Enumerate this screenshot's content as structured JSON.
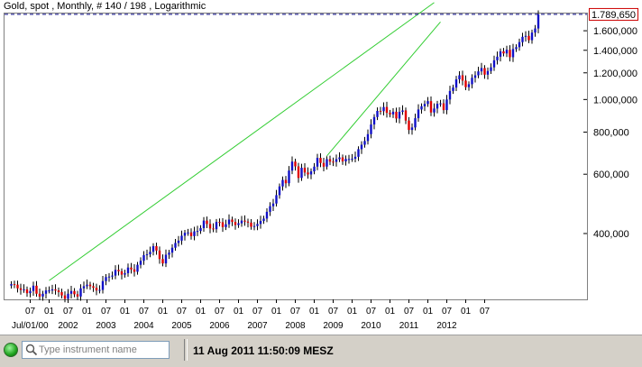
{
  "window": {
    "title": "Gold, spot , Monthly, # 140 / 198 , Logarithmic"
  },
  "price_label": "1.789,650",
  "statusbar": {
    "instrument_placeholder": "Type instrument name",
    "timestamp": "11 Aug 2011 11:50:09 MESZ"
  },
  "colors": {
    "up_candle": "#1010c8",
    "down_candle": "#e00000",
    "trend_line": "#32cd32",
    "price_line": "#000080",
    "price_label_border": "#cc0000"
  },
  "chart_data": {
    "type": "candlestick",
    "instrument": "Gold, spot",
    "interval": "Monthly",
    "scale": "logarithmic",
    "ylim": [
      255,
      1800
    ],
    "y_ticks": [
      {
        "value": 1600,
        "label": "1.600,000"
      },
      {
        "value": 1400,
        "label": "1.400,000"
      },
      {
        "value": 1200,
        "label": "1.200,000"
      },
      {
        "value": 1000,
        "label": "1.000,000"
      },
      {
        "value": 800,
        "label": "800,000"
      },
      {
        "value": 600,
        "label": "600,000"
      },
      {
        "value": 400,
        "label": "400,000"
      }
    ],
    "x_month_ticks": [
      "07",
      "01",
      "07",
      "01",
      "07",
      "01",
      "07",
      "01",
      "07",
      "01",
      "07",
      "01",
      "07",
      "01",
      "07",
      "01",
      "07",
      "01",
      "07",
      "01",
      "07",
      "01",
      "07",
      "01",
      "07"
    ],
    "x_year_labels": [
      "Jul/01/00",
      "2002",
      "2003",
      "2004",
      "2005",
      "2006",
      "2007",
      "2008",
      "2009",
      "2010",
      "2011",
      "2012"
    ],
    "current_price": 1789.65,
    "trend_lines": [
      {
        "name": "upper",
        "from": [
          "2001-07",
          290
        ],
        "to": [
          "2011-09",
          1940
        ]
      },
      {
        "name": "lower",
        "from": [
          "2008-11",
          680
        ],
        "to": [
          "2011-11",
          1700
        ]
      }
    ],
    "closes": [
      283,
      282,
      275,
      272,
      273,
      266,
      270,
      280,
      265,
      260,
      265,
      271,
      271,
      273,
      271,
      268,
      262,
      256,
      265,
      270,
      264,
      260,
      275,
      279,
      282,
      279,
      276,
      271,
      272,
      289,
      297,
      298,
      300,
      312,
      309,
      302,
      305,
      317,
      313,
      308,
      323,
      332,
      345,
      347,
      353,
      367,
      356,
      336,
      326,
      346,
      351,
      363,
      375,
      381,
      394,
      402,
      403,
      393,
      406,
      407,
      415,
      437,
      427,
      414,
      412,
      433,
      432,
      418,
      426,
      440,
      433,
      424,
      429,
      437,
      434,
      431,
      419,
      421,
      427,
      436,
      443,
      464,
      482,
      491,
      520,
      552,
      577,
      564,
      615,
      654,
      633,
      585,
      627,
      607,
      599,
      612,
      632,
      671,
      648,
      632,
      665,
      654,
      653,
      665,
      673,
      655,
      666,
      666,
      667,
      676,
      712,
      734,
      753,
      789,
      843,
      887,
      925,
      923,
      950,
      913,
      903,
      920,
      878,
      919,
      928,
      866,
      812,
      826,
      880,
      934,
      955,
      970,
      989,
      915,
      940,
      971,
      974,
      930,
      1000,
      1060,
      1085,
      1148,
      1180,
      1138,
      1088,
      1110,
      1160,
      1180,
      1212,
      1240,
      1185,
      1215,
      1246,
      1307,
      1340,
      1390,
      1370,
      1405,
      1335,
      1412,
      1430,
      1480,
      1535,
      1545,
      1500,
      1580,
      1625,
      1789
    ]
  }
}
